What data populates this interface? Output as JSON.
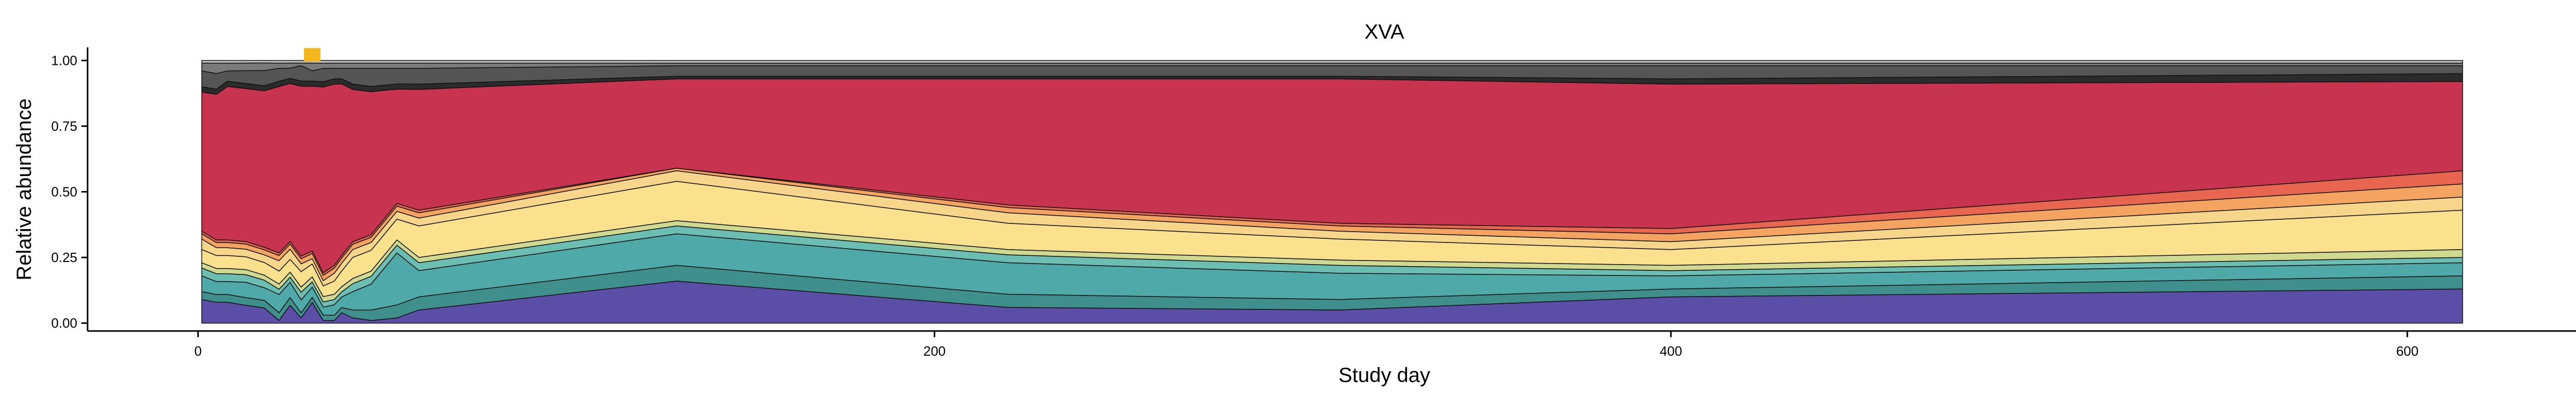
{
  "chart_data": {
    "type": "area",
    "stacked": true,
    "normalized": true,
    "title": "XVA",
    "xlabel": "Study day",
    "ylabel": "Relative abundance",
    "xlim": [
      -30,
      650
    ],
    "ylim": [
      -0.03,
      1.05
    ],
    "x_ticks": [
      0,
      200,
      400,
      600
    ],
    "x_tick_labels": [
      "0",
      "200",
      "400",
      "600"
    ],
    "y_ticks": [
      0,
      0.25,
      0.5,
      0.75,
      1.0
    ],
    "y_tick_labels": [
      "0.00",
      "0.25",
      "0.50",
      "0.75",
      "1.00"
    ],
    "grid": false,
    "legend": "none",
    "x": [
      1,
      5,
      8,
      13,
      18,
      22,
      25,
      28,
      31,
      34,
      37,
      39,
      42,
      47,
      54,
      60,
      130,
      220,
      310,
      400,
      615
    ],
    "series": [
      {
        "color": "#5b4ea6",
        "values": [
          0.09,
          0.08,
          0.08,
          0.07,
          0.06,
          0.01,
          0.07,
          0.02,
          0.08,
          0.01,
          0.01,
          0.04,
          0.02,
          0.01,
          0.02,
          0.05,
          0.16,
          0.06,
          0.05,
          0.1,
          0.13
        ]
      },
      {
        "color": "#3f8f8c",
        "values": [
          0.03,
          0.03,
          0.03,
          0.03,
          0.03,
          0.03,
          0.03,
          0.02,
          0.02,
          0.02,
          0.02,
          0.02,
          0.03,
          0.04,
          0.05,
          0.05,
          0.06,
          0.05,
          0.04,
          0.03,
          0.05
        ]
      },
      {
        "color": "#4fa9a9",
        "values": [
          0.06,
          0.05,
          0.05,
          0.06,
          0.05,
          0.07,
          0.06,
          0.05,
          0.04,
          0.03,
          0.04,
          0.04,
          0.07,
          0.1,
          0.2,
          0.1,
          0.12,
          0.12,
          0.1,
          0.05,
          0.05
        ]
      },
      {
        "color": "#6cbdb2",
        "values": [
          0.03,
          0.03,
          0.03,
          0.03,
          0.03,
          0.02,
          0.02,
          0.03,
          0.02,
          0.02,
          0.02,
          0.02,
          0.03,
          0.03,
          0.03,
          0.03,
          0.03,
          0.03,
          0.03,
          0.02,
          0.02
        ]
      },
      {
        "color": "#cfd98f",
        "values": [
          0.02,
          0.02,
          0.02,
          0.02,
          0.02,
          0.02,
          0.02,
          0.02,
          0.02,
          0.02,
          0.02,
          0.02,
          0.02,
          0.02,
          0.02,
          0.02,
          0.02,
          0.02,
          0.02,
          0.02,
          0.03
        ]
      },
      {
        "color": "#fbe08e",
        "values": [
          0.05,
          0.05,
          0.05,
          0.05,
          0.05,
          0.05,
          0.05,
          0.06,
          0.05,
          0.04,
          0.05,
          0.06,
          0.08,
          0.08,
          0.08,
          0.12,
          0.15,
          0.1,
          0.08,
          0.06,
          0.15
        ]
      },
      {
        "color": "#f7d58a",
        "values": [
          0.04,
          0.03,
          0.03,
          0.03,
          0.03,
          0.04,
          0.04,
          0.03,
          0.02,
          0.02,
          0.03,
          0.03,
          0.03,
          0.03,
          0.03,
          0.03,
          0.04,
          0.04,
          0.03,
          0.03,
          0.05
        ]
      },
      {
        "color": "#f4a460",
        "values": [
          0.02,
          0.02,
          0.02,
          0.02,
          0.02,
          0.02,
          0.02,
          0.02,
          0.02,
          0.02,
          0.02,
          0.02,
          0.02,
          0.02,
          0.02,
          0.02,
          0.01,
          0.02,
          0.02,
          0.03,
          0.05
        ]
      },
      {
        "color": "#e8664f",
        "values": [
          0.01,
          0.01,
          0.01,
          0.01,
          0.01,
          0.01,
          0.01,
          0.01,
          0.01,
          0.01,
          0.01,
          0.01,
          0.01,
          0.01,
          0.01,
          0.01,
          0.0,
          0.01,
          0.01,
          0.02,
          0.05
        ]
      },
      {
        "color": "#c8334f",
        "values": [
          0.53,
          0.56,
          0.59,
          0.6,
          0.62,
          0.64,
          0.62,
          0.66,
          0.64,
          0.7,
          0.69,
          0.66,
          0.58,
          0.55,
          0.44,
          0.46,
          0.34,
          0.48,
          0.55,
          0.55,
          0.34
        ]
      },
      {
        "color": "#2b2b2b",
        "values": [
          0.02,
          0.02,
          0.02,
          0.02,
          0.02,
          0.02,
          0.02,
          0.02,
          0.02,
          0.02,
          0.02,
          0.02,
          0.02,
          0.02,
          0.02,
          0.02,
          0.01,
          0.01,
          0.01,
          0.02,
          0.03
        ]
      },
      {
        "color": "#555555",
        "values": [
          0.06,
          0.06,
          0.04,
          0.05,
          0.06,
          0.05,
          0.04,
          0.06,
          0.04,
          0.05,
          0.04,
          0.04,
          0.06,
          0.07,
          0.06,
          0.06,
          0.04,
          0.04,
          0.04,
          0.05,
          0.03
        ]
      },
      {
        "color": "#7a7a7a",
        "values": [
          0.03,
          0.04,
          0.03,
          0.03,
          0.03,
          0.02,
          0.02,
          0.01,
          0.03,
          0.02,
          0.02,
          0.02,
          0.02,
          0.02,
          0.02,
          0.02,
          0.01,
          0.01,
          0.01,
          0.01,
          0.01
        ]
      },
      {
        "color": "#bdbdbd",
        "values": [
          0.01,
          0.01,
          0.01,
          0.01,
          0.01,
          0.01,
          0.01,
          0.01,
          0.01,
          0.01,
          0.01,
          0.01,
          0.01,
          0.01,
          0.01,
          0.01,
          0.01,
          0.01,
          0.01,
          0.01,
          0.01
        ]
      }
    ],
    "markers": [
      {
        "shape": "square",
        "color": "#f5b51c",
        "x": 31,
        "y": 1.02
      }
    ]
  }
}
